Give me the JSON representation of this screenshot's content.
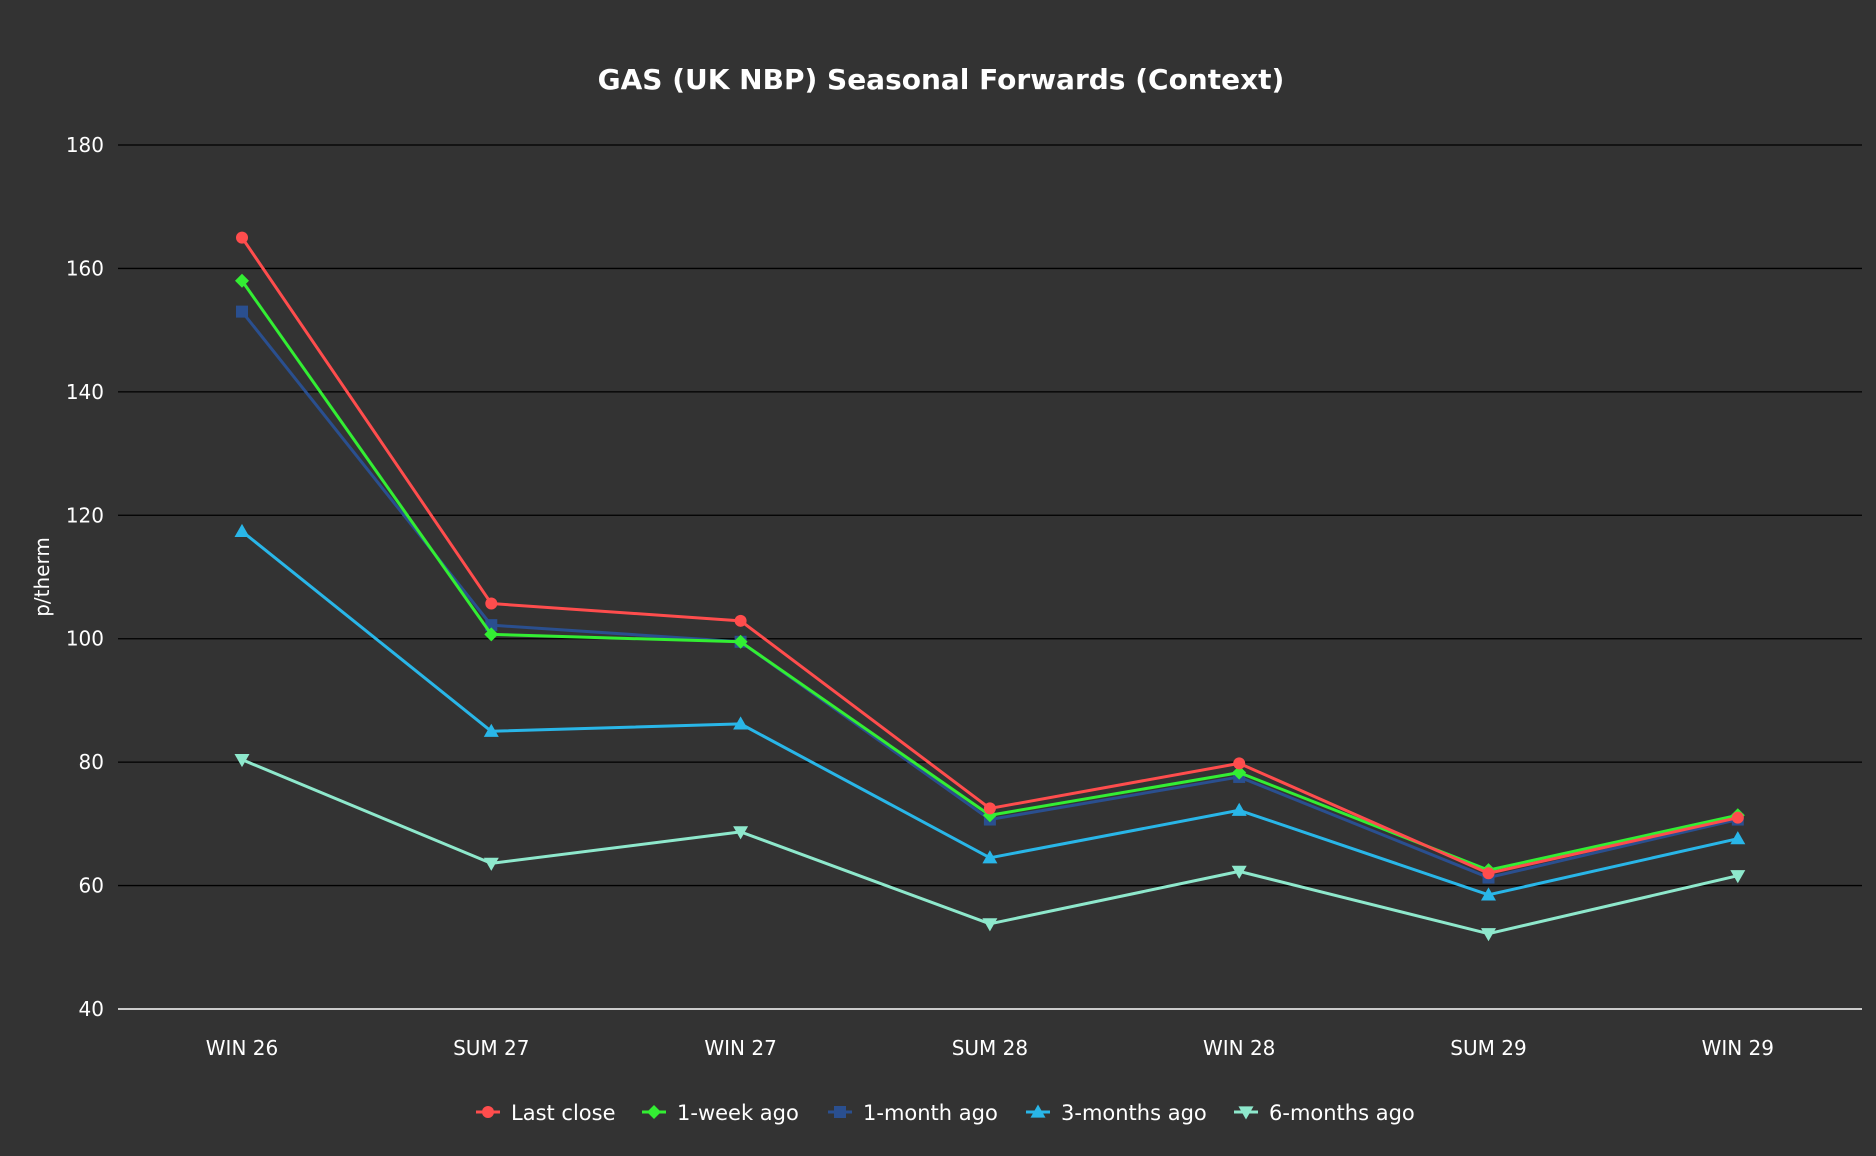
{
  "chart_data": {
    "type": "line",
    "title": "GAS (UK NBP) Seasonal Forwards (Context)",
    "xlabel": "",
    "ylabel": "p/therm",
    "categories": [
      "WIN 26",
      "SUM 27",
      "WIN 27",
      "SUM 28",
      "WIN 28",
      "SUM 29",
      "WIN 29"
    ],
    "ylim": [
      40,
      180
    ],
    "yticks": [
      40,
      60,
      80,
      100,
      120,
      140,
      160,
      180
    ],
    "grid": true,
    "legend_position": "bottom",
    "series": [
      {
        "name": "Last close",
        "color": "#ff4d4d",
        "marker": "circle",
        "values": [
          165,
          105.7,
          102.9,
          72.5,
          79.8,
          62.0,
          71.0
        ]
      },
      {
        "name": "1-week ago",
        "color": "#33ee33",
        "marker": "diamond",
        "values": [
          158,
          100.7,
          99.5,
          71.4,
          78.3,
          62.5,
          71.4
        ]
      },
      {
        "name": "1-month ago",
        "color": "#2a4f8f",
        "marker": "square",
        "values": [
          153,
          102.2,
          99.5,
          70.7,
          77.6,
          61.3,
          70.7
        ]
      },
      {
        "name": "3-months ago",
        "color": "#29b6e8",
        "marker": "triangle-up",
        "values": [
          117.4,
          85.0,
          86.2,
          64.5,
          72.2,
          58.5,
          67.6
        ]
      },
      {
        "name": "6-months ago",
        "color": "#8ee8cc",
        "marker": "triangle-down",
        "values": [
          80.4,
          63.6,
          68.7,
          53.8,
          62.3,
          52.2,
          61.6
        ]
      }
    ]
  }
}
